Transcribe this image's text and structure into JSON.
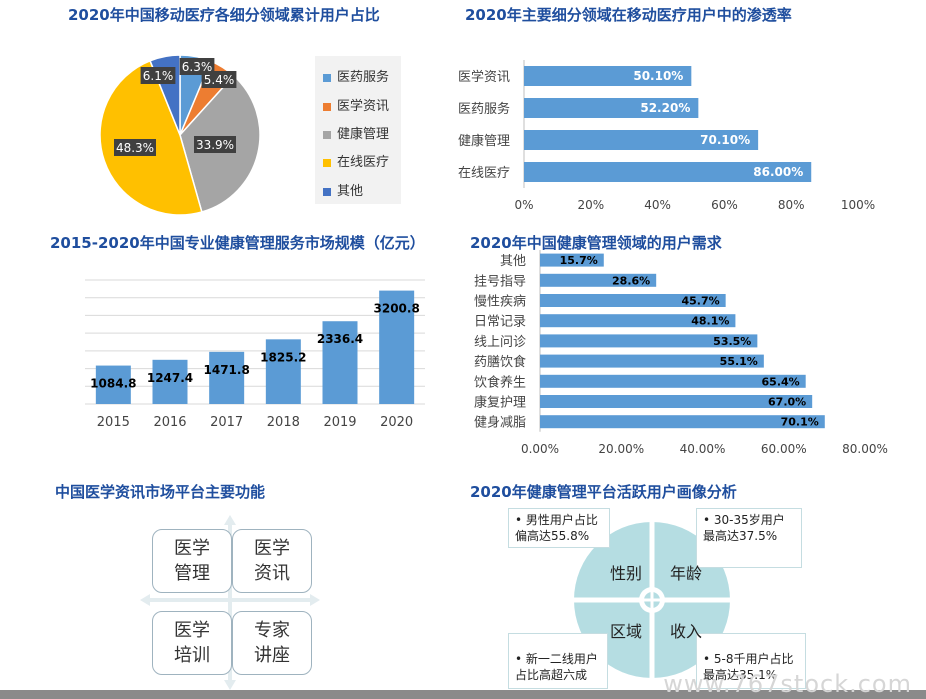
{
  "titles": {
    "pie": "2020年中国移动医疗各细分领域累计用户占比",
    "penetration": "2020年主要细分领域在移动医疗用户中的渗透率",
    "market": "2015-2020年中国专业健康管理服务市场规模（亿元）",
    "needs": "2020年中国健康管理领域的用户需求",
    "functions": "中国医学资讯市场平台主要功能",
    "portrait": "2020年健康管理平台活跃用户画像分析"
  },
  "chart_data": [
    {
      "type": "pie",
      "title": "2020年中国移动医疗各细分领域累计用户占比",
      "labels": [
        "医药服务",
        "医学资讯",
        "健康管理",
        "在线医疗",
        "其他"
      ],
      "values": [
        6.3,
        5.4,
        33.9,
        48.3,
        6.1
      ],
      "value_labels": [
        "6.3%",
        "5.4%",
        "33.9%",
        "48.3%",
        "6.1%"
      ],
      "colors": [
        "#5b9bd5",
        "#ed7d31",
        "#a5a5a5",
        "#ffc000",
        "#4472c4"
      ],
      "legend_position": "right"
    },
    {
      "type": "bar",
      "orientation": "horizontal",
      "title": "2020年主要细分领域在移动医疗用户中的渗透率",
      "categories": [
        "医学资讯",
        "医药服务",
        "健康管理",
        "在线医疗"
      ],
      "values": [
        50.1,
        52.2,
        70.1,
        86.0
      ],
      "value_labels": [
        "50.10%",
        "52.20%",
        "70.10%",
        "86.00%"
      ],
      "xticks": [
        "0%",
        "20%",
        "40%",
        "60%",
        "80%",
        "100%"
      ],
      "xlim": [
        0,
        100
      ],
      "color": "#5b9bd5"
    },
    {
      "type": "bar",
      "title": "2015-2020年中国专业健康管理服务市场规模（亿元）",
      "categories": [
        "2015",
        "2016",
        "2017",
        "2018",
        "2019",
        "2020"
      ],
      "values": [
        1084.8,
        1247.4,
        1471.8,
        1825.2,
        2336.4,
        3200.8
      ],
      "value_labels": [
        "1084.8",
        "1247.4",
        "1471.8",
        "1825.2",
        "2336.4",
        "3200.8"
      ],
      "ylim": [
        0,
        3500
      ],
      "grid": true,
      "color": "#5b9bd5"
    },
    {
      "type": "bar",
      "orientation": "horizontal",
      "title": "2020年中国健康管理领域的用户需求",
      "categories": [
        "其他",
        "挂号指导",
        "慢性疾病",
        "日常记录",
        "线上问诊",
        "药膳饮食",
        "饮食养生",
        "康复护理",
        "健身减脂"
      ],
      "values": [
        15.7,
        28.6,
        45.7,
        48.1,
        53.5,
        55.1,
        65.4,
        67.0,
        70.1
      ],
      "value_labels": [
        "15.7%",
        "28.6%",
        "45.7%",
        "48.1%",
        "53.5%",
        "55.1%",
        "65.4%",
        "67.0%",
        "70.1%"
      ],
      "xticks": [
        "0.00%",
        "20.00%",
        "40.00%",
        "60.00%",
        "80.00%"
      ],
      "xlim": [
        0,
        80
      ],
      "color": "#5b9bd5"
    }
  ],
  "functions": {
    "boxes": [
      [
        "医学",
        "管理"
      ],
      [
        "医学",
        "资讯"
      ],
      [
        "医学",
        "培训"
      ],
      [
        "专家",
        "讲座"
      ]
    ]
  },
  "portrait": {
    "quadrants": [
      "性别",
      "年龄",
      "区域",
      "收入"
    ],
    "callouts": [
      [
        "• 男性用户占比",
        "偏高达55.8%"
      ],
      [
        "• 30-35岁用户",
        "最高达37.5%"
      ],
      [
        "• 新一二线用户",
        "占比高超六成"
      ],
      [
        "• 5-8千用户占比",
        "最高达35.1%"
      ]
    ]
  },
  "watermark": "www.767stock.com"
}
